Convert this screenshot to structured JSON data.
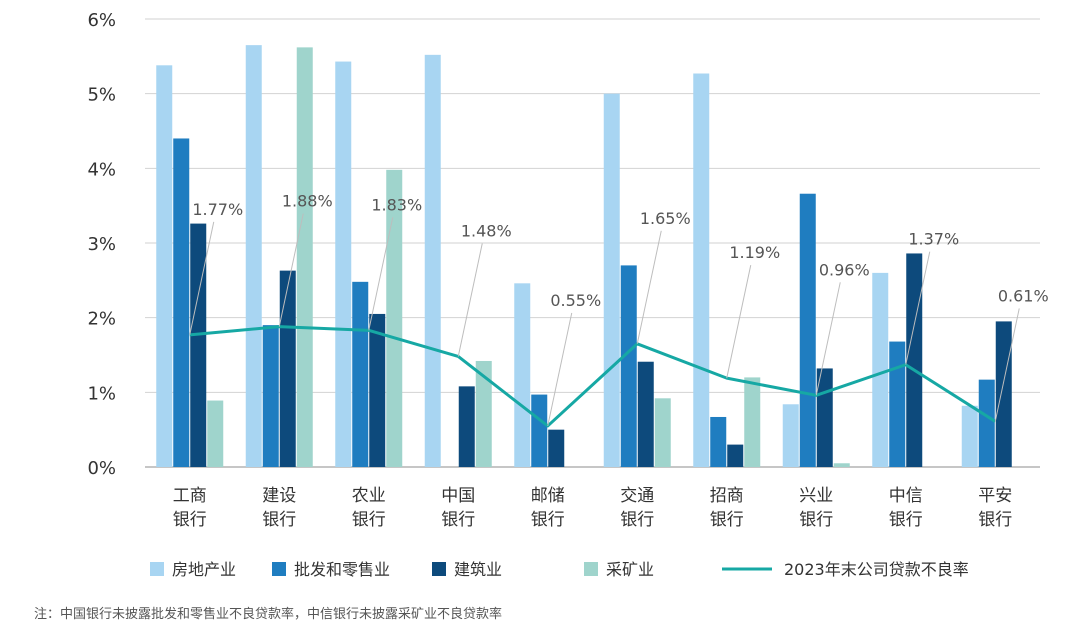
{
  "chart_data": {
    "type": "bar",
    "categories": [
      [
        "工商",
        "银行"
      ],
      [
        "建设",
        "银行"
      ],
      [
        "农业",
        "银行"
      ],
      [
        "中国",
        "银行"
      ],
      [
        "邮储",
        "银行"
      ],
      [
        "交通",
        "银行"
      ],
      [
        "招商",
        "银行"
      ],
      [
        "兴业",
        "银行"
      ],
      [
        "中信",
        "银行"
      ],
      [
        "平安",
        "银行"
      ]
    ],
    "ylim": [
      0,
      6
    ],
    "yticks": [
      0,
      1,
      2,
      3,
      4,
      5,
      6
    ],
    "ytick_suffix": "%",
    "series": [
      {
        "name": "房地产业",
        "color": "#a8d5f2",
        "values": [
          5.38,
          5.65,
          5.43,
          5.52,
          2.46,
          5.0,
          5.27,
          0.84,
          2.6,
          0.82
        ]
      },
      {
        "name": "批发和零售业",
        "color": "#1f7dc0",
        "values": [
          4.4,
          1.9,
          2.48,
          null,
          0.97,
          2.7,
          0.67,
          3.66,
          1.68,
          1.17
        ]
      },
      {
        "name": "建筑业",
        "color": "#0d4a7c",
        "values": [
          3.26,
          2.63,
          2.05,
          1.08,
          0.5,
          1.41,
          0.3,
          1.32,
          2.86,
          1.95
        ]
      },
      {
        "name": "采矿业",
        "color": "#9fd4cc",
        "values": [
          0.89,
          5.62,
          3.98,
          1.42,
          null,
          0.92,
          1.2,
          0.05,
          null,
          null
        ]
      }
    ],
    "line": {
      "name": "2023年末公司贷款不良率",
      "color": "#16a8a4",
      "values": [
        1.77,
        1.88,
        1.83,
        1.48,
        0.55,
        1.65,
        1.19,
        0.96,
        1.37,
        0.61
      ],
      "labels": [
        "1.77%",
        "1.88%",
        "1.83%",
        "1.48%",
        "0.55%",
        "1.65%",
        "1.19%",
        "0.96%",
        "1.37%",
        "0.61%"
      ]
    },
    "legend_position": "bottom",
    "footnote": "注：中国银行未披露批发和零售业不良贷款率，中信银行未披露采矿业不良贷款率"
  }
}
